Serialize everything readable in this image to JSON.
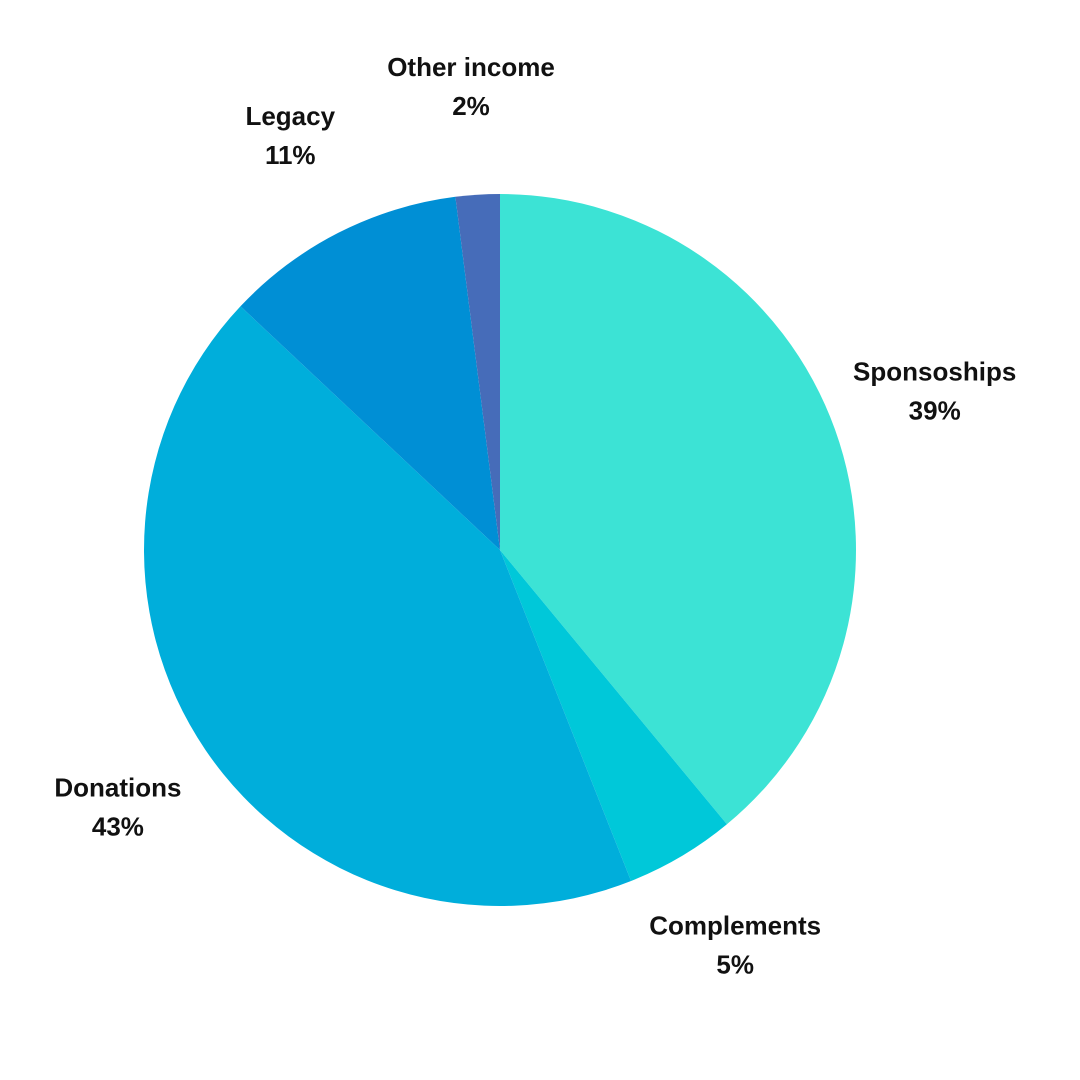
{
  "chart_data": {
    "type": "pie",
    "categories": [
      "Sponsoships",
      "Complements",
      "Donations",
      "Legacy",
      "Other income"
    ],
    "values": [
      39,
      5,
      43,
      11,
      2
    ],
    "value_labels": [
      "39%",
      "5%",
      "43%",
      "11%",
      "2%"
    ],
    "colors": [
      "#3ce3d5",
      "#00c8d9",
      "#00aedb",
      "#008fd5",
      "#466cb9"
    ]
  }
}
